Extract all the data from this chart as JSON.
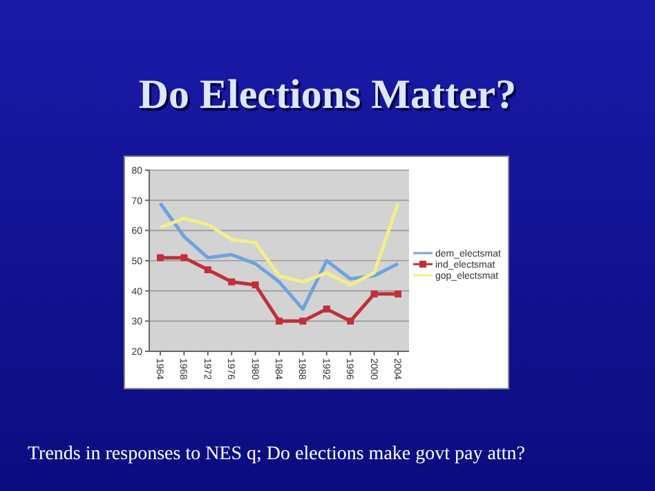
{
  "chart_data": {
    "type": "line",
    "title": "Do Elections Matter?",
    "categories": [
      "1964",
      "1968",
      "1972",
      "1976",
      "1980",
      "1984",
      "1988",
      "1992",
      "1996",
      "2000",
      "2004"
    ],
    "series": [
      {
        "name": "dem_electsmat",
        "color": "#6fa3dc",
        "marker": "none",
        "values": [
          69,
          58,
          51,
          52,
          49,
          43,
          34,
          50,
          44,
          45,
          49
        ]
      },
      {
        "name": "ind_electsmat",
        "color": "#c0303a",
        "marker": "square",
        "values": [
          51,
          51,
          47,
          43,
          42,
          30,
          30,
          34,
          30,
          39,
          39
        ]
      },
      {
        "name": "gop_electsmat",
        "color": "#f2ee8a",
        "marker": "none",
        "values": [
          61,
          64,
          62,
          57,
          56,
          45,
          43,
          46,
          42,
          46,
          69
        ]
      }
    ],
    "ylim": [
      20,
      80
    ],
    "yticks": [
      20,
      30,
      40,
      50,
      60,
      70,
      80
    ],
    "grid": "y",
    "legend": "right",
    "annotations": [
      "Trends in responses to NES q;  Do elections make govt pay attn?"
    ]
  }
}
